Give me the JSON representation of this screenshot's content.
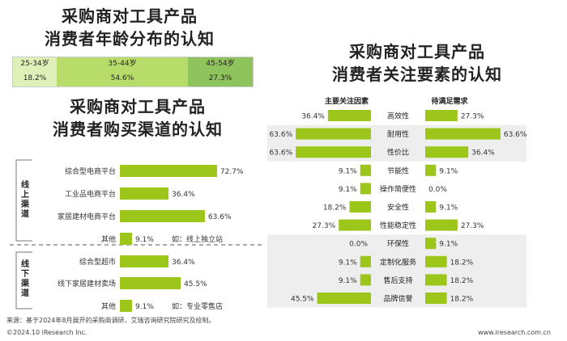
{
  "titles": {
    "age": [
      "采购商对工具产品",
      "消费者年龄分布的认知"
    ],
    "channel": [
      "采购商对工具产品",
      "消费者购买渠道的认知"
    ],
    "factors": [
      "采购商对工具产品",
      "消费者关注要素的认知"
    ]
  },
  "colors": {
    "bar": "#9cc61a",
    "age_light": "#dff0b8",
    "age_mid": "#b8dc6a",
    "age_dark": "#8fc45c",
    "panel_bg": "#eeeeee"
  },
  "chart_data": [
    {
      "type": "bar",
      "title": "采购商对工具产品消费者年龄分布的认知",
      "categories": [
        "25-34岁",
        "35-44岁",
        "45-54岁"
      ],
      "values": [
        18.2,
        54.6,
        27.3
      ],
      "labels": [
        "18.2%",
        "54.6%",
        "27.3%"
      ]
    },
    {
      "type": "bar",
      "title": "采购商对工具产品消费者购买渠道的认知",
      "groups": [
        {
          "name": "线上渠道",
          "categories": [
            "综合型电商平台",
            "工业品电商平台",
            "家居建材电商平台",
            "其他"
          ],
          "values": [
            72.7,
            36.4,
            63.6,
            9.1
          ],
          "labels": [
            "72.7%",
            "36.4%",
            "63.6%",
            "9.1%"
          ]
        },
        {
          "name": "线下渠道",
          "categories": [
            "综合型超市",
            "线下家居建材卖场",
            "其他"
          ],
          "values": [
            36.4,
            45.5,
            9.1
          ],
          "labels": [
            "36.4%",
            "45.5%",
            "9.1%"
          ]
        }
      ],
      "notes": [
        "如：线上独立站",
        "如：专业零售店"
      ],
      "xlim": [
        0,
        100
      ]
    },
    {
      "type": "bar",
      "title": "采购商对工具产品消费者关注要素的认知",
      "categories": [
        "高效性",
        "耐用性",
        "性价比",
        "节能性",
        "操作简便性",
        "安全性",
        "性能稳定性",
        "环保性",
        "定制化服务",
        "售后支持",
        "品牌信誉"
      ],
      "series": [
        {
          "name": "主要关注因素",
          "values": [
            36.4,
            63.6,
            63.6,
            9.1,
            9.1,
            18.2,
            27.3,
            0.0,
            9.1,
            9.1,
            45.5
          ],
          "labels": [
            "36.4%",
            "63.6%",
            "63.6%",
            "9.1%",
            "9.1%",
            "18.2%",
            "27.3%",
            "0.0%",
            "9.1%",
            "9.1%",
            "45.5%"
          ]
        },
        {
          "name": "待满足需求",
          "values": [
            27.3,
            63.6,
            36.4,
            9.1,
            0.0,
            9.1,
            27.3,
            9.1,
            18.2,
            18.2,
            18.2
          ],
          "labels": [
            "27.3%",
            "63.6%",
            "36.4%",
            "9.1%",
            "0.0%",
            "9.1%",
            "27.3%",
            "9.1%",
            "18.2%",
            "18.2%",
            "18.2%"
          ]
        }
      ],
      "xlim": [
        0,
        100
      ]
    }
  ],
  "footer": {
    "source": "来源：基于2024年8月展开的采购商调研，艾瑞咨询研究院研究及绘制。",
    "copyright": "©2024.10 iResearch Inc.",
    "website": "www.iresearch.com.cn"
  }
}
